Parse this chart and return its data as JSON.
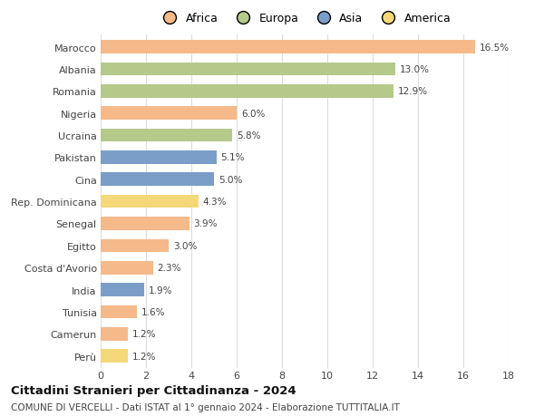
{
  "countries": [
    "Marocco",
    "Albania",
    "Romania",
    "Nigeria",
    "Ucraina",
    "Pakistan",
    "Cina",
    "Rep. Dominicana",
    "Senegal",
    "Egitto",
    "Costa d'Avorio",
    "India",
    "Tunisia",
    "Camerun",
    "Perù"
  ],
  "values": [
    16.5,
    13.0,
    12.9,
    6.0,
    5.8,
    5.1,
    5.0,
    4.3,
    3.9,
    3.0,
    2.3,
    1.9,
    1.6,
    1.2,
    1.2
  ],
  "continents": [
    "Africa",
    "Europa",
    "Europa",
    "Africa",
    "Europa",
    "Asia",
    "Asia",
    "America",
    "Africa",
    "Africa",
    "Africa",
    "Asia",
    "Africa",
    "Africa",
    "America"
  ],
  "continent_colors": {
    "Africa": "#F5B98A",
    "Europa": "#B5C98A",
    "Asia": "#7B9EC9",
    "America": "#F5D87A"
  },
  "legend_order": [
    "Africa",
    "Europa",
    "Asia",
    "America"
  ],
  "xlim": [
    0,
    18
  ],
  "xticks": [
    0,
    2,
    4,
    6,
    8,
    10,
    12,
    14,
    16,
    18
  ],
  "title": "Cittadini Stranieri per Cittadinanza - 2024",
  "subtitle": "COMUNE DI VERCELLI - Dati ISTAT al 1° gennaio 2024 - Elaborazione TUTTITALIA.IT",
  "bg_color": "#ffffff",
  "grid_color": "#dddddd",
  "bar_height": 0.6
}
